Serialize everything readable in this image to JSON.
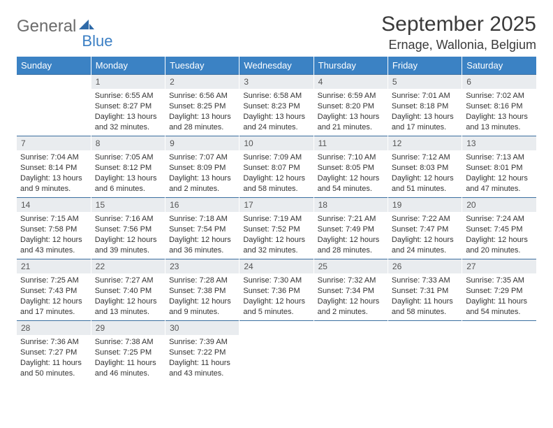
{
  "logo": {
    "word1": "General",
    "word2": "Blue"
  },
  "header": {
    "month_title": "September 2025",
    "location": "Ernage, Wallonia, Belgium"
  },
  "colors": {
    "header_bg": "#3b82c4",
    "header_text": "#ffffff",
    "daynum_bg": "#e9ecef",
    "row_border": "#3b6fa0",
    "logo_blue": "#3b7fc4"
  },
  "typography": {
    "month_fontsize": 30,
    "location_fontsize": 18,
    "dayheader_fontsize": 13,
    "daynum_fontsize": 12,
    "body_fontsize": 11
  },
  "day_headers": [
    "Sunday",
    "Monday",
    "Tuesday",
    "Wednesday",
    "Thursday",
    "Friday",
    "Saturday"
  ],
  "weeks": [
    [
      {
        "n": "",
        "sr": "",
        "ss": "",
        "dl": "",
        "empty": true
      },
      {
        "n": "1",
        "sr": "Sunrise: 6:55 AM",
        "ss": "Sunset: 8:27 PM",
        "dl": "Daylight: 13 hours and 32 minutes."
      },
      {
        "n": "2",
        "sr": "Sunrise: 6:56 AM",
        "ss": "Sunset: 8:25 PM",
        "dl": "Daylight: 13 hours and 28 minutes."
      },
      {
        "n": "3",
        "sr": "Sunrise: 6:58 AM",
        "ss": "Sunset: 8:23 PM",
        "dl": "Daylight: 13 hours and 24 minutes."
      },
      {
        "n": "4",
        "sr": "Sunrise: 6:59 AM",
        "ss": "Sunset: 8:20 PM",
        "dl": "Daylight: 13 hours and 21 minutes."
      },
      {
        "n": "5",
        "sr": "Sunrise: 7:01 AM",
        "ss": "Sunset: 8:18 PM",
        "dl": "Daylight: 13 hours and 17 minutes."
      },
      {
        "n": "6",
        "sr": "Sunrise: 7:02 AM",
        "ss": "Sunset: 8:16 PM",
        "dl": "Daylight: 13 hours and 13 minutes."
      }
    ],
    [
      {
        "n": "7",
        "sr": "Sunrise: 7:04 AM",
        "ss": "Sunset: 8:14 PM",
        "dl": "Daylight: 13 hours and 9 minutes."
      },
      {
        "n": "8",
        "sr": "Sunrise: 7:05 AM",
        "ss": "Sunset: 8:12 PM",
        "dl": "Daylight: 13 hours and 6 minutes."
      },
      {
        "n": "9",
        "sr": "Sunrise: 7:07 AM",
        "ss": "Sunset: 8:09 PM",
        "dl": "Daylight: 13 hours and 2 minutes."
      },
      {
        "n": "10",
        "sr": "Sunrise: 7:09 AM",
        "ss": "Sunset: 8:07 PM",
        "dl": "Daylight: 12 hours and 58 minutes."
      },
      {
        "n": "11",
        "sr": "Sunrise: 7:10 AM",
        "ss": "Sunset: 8:05 PM",
        "dl": "Daylight: 12 hours and 54 minutes."
      },
      {
        "n": "12",
        "sr": "Sunrise: 7:12 AM",
        "ss": "Sunset: 8:03 PM",
        "dl": "Daylight: 12 hours and 51 minutes."
      },
      {
        "n": "13",
        "sr": "Sunrise: 7:13 AM",
        "ss": "Sunset: 8:01 PM",
        "dl": "Daylight: 12 hours and 47 minutes."
      }
    ],
    [
      {
        "n": "14",
        "sr": "Sunrise: 7:15 AM",
        "ss": "Sunset: 7:58 PM",
        "dl": "Daylight: 12 hours and 43 minutes."
      },
      {
        "n": "15",
        "sr": "Sunrise: 7:16 AM",
        "ss": "Sunset: 7:56 PM",
        "dl": "Daylight: 12 hours and 39 minutes."
      },
      {
        "n": "16",
        "sr": "Sunrise: 7:18 AM",
        "ss": "Sunset: 7:54 PM",
        "dl": "Daylight: 12 hours and 36 minutes."
      },
      {
        "n": "17",
        "sr": "Sunrise: 7:19 AM",
        "ss": "Sunset: 7:52 PM",
        "dl": "Daylight: 12 hours and 32 minutes."
      },
      {
        "n": "18",
        "sr": "Sunrise: 7:21 AM",
        "ss": "Sunset: 7:49 PM",
        "dl": "Daylight: 12 hours and 28 minutes."
      },
      {
        "n": "19",
        "sr": "Sunrise: 7:22 AM",
        "ss": "Sunset: 7:47 PM",
        "dl": "Daylight: 12 hours and 24 minutes."
      },
      {
        "n": "20",
        "sr": "Sunrise: 7:24 AM",
        "ss": "Sunset: 7:45 PM",
        "dl": "Daylight: 12 hours and 20 minutes."
      }
    ],
    [
      {
        "n": "21",
        "sr": "Sunrise: 7:25 AM",
        "ss": "Sunset: 7:43 PM",
        "dl": "Daylight: 12 hours and 17 minutes."
      },
      {
        "n": "22",
        "sr": "Sunrise: 7:27 AM",
        "ss": "Sunset: 7:40 PM",
        "dl": "Daylight: 12 hours and 13 minutes."
      },
      {
        "n": "23",
        "sr": "Sunrise: 7:28 AM",
        "ss": "Sunset: 7:38 PM",
        "dl": "Daylight: 12 hours and 9 minutes."
      },
      {
        "n": "24",
        "sr": "Sunrise: 7:30 AM",
        "ss": "Sunset: 7:36 PM",
        "dl": "Daylight: 12 hours and 5 minutes."
      },
      {
        "n": "25",
        "sr": "Sunrise: 7:32 AM",
        "ss": "Sunset: 7:34 PM",
        "dl": "Daylight: 12 hours and 2 minutes."
      },
      {
        "n": "26",
        "sr": "Sunrise: 7:33 AM",
        "ss": "Sunset: 7:31 PM",
        "dl": "Daylight: 11 hours and 58 minutes."
      },
      {
        "n": "27",
        "sr": "Sunrise: 7:35 AM",
        "ss": "Sunset: 7:29 PM",
        "dl": "Daylight: 11 hours and 54 minutes."
      }
    ],
    [
      {
        "n": "28",
        "sr": "Sunrise: 7:36 AM",
        "ss": "Sunset: 7:27 PM",
        "dl": "Daylight: 11 hours and 50 minutes."
      },
      {
        "n": "29",
        "sr": "Sunrise: 7:38 AM",
        "ss": "Sunset: 7:25 PM",
        "dl": "Daylight: 11 hours and 46 minutes."
      },
      {
        "n": "30",
        "sr": "Sunrise: 7:39 AM",
        "ss": "Sunset: 7:22 PM",
        "dl": "Daylight: 11 hours and 43 minutes."
      },
      {
        "n": "",
        "sr": "",
        "ss": "",
        "dl": "",
        "empty": true
      },
      {
        "n": "",
        "sr": "",
        "ss": "",
        "dl": "",
        "empty": true
      },
      {
        "n": "",
        "sr": "",
        "ss": "",
        "dl": "",
        "empty": true
      },
      {
        "n": "",
        "sr": "",
        "ss": "",
        "dl": "",
        "empty": true
      }
    ]
  ]
}
